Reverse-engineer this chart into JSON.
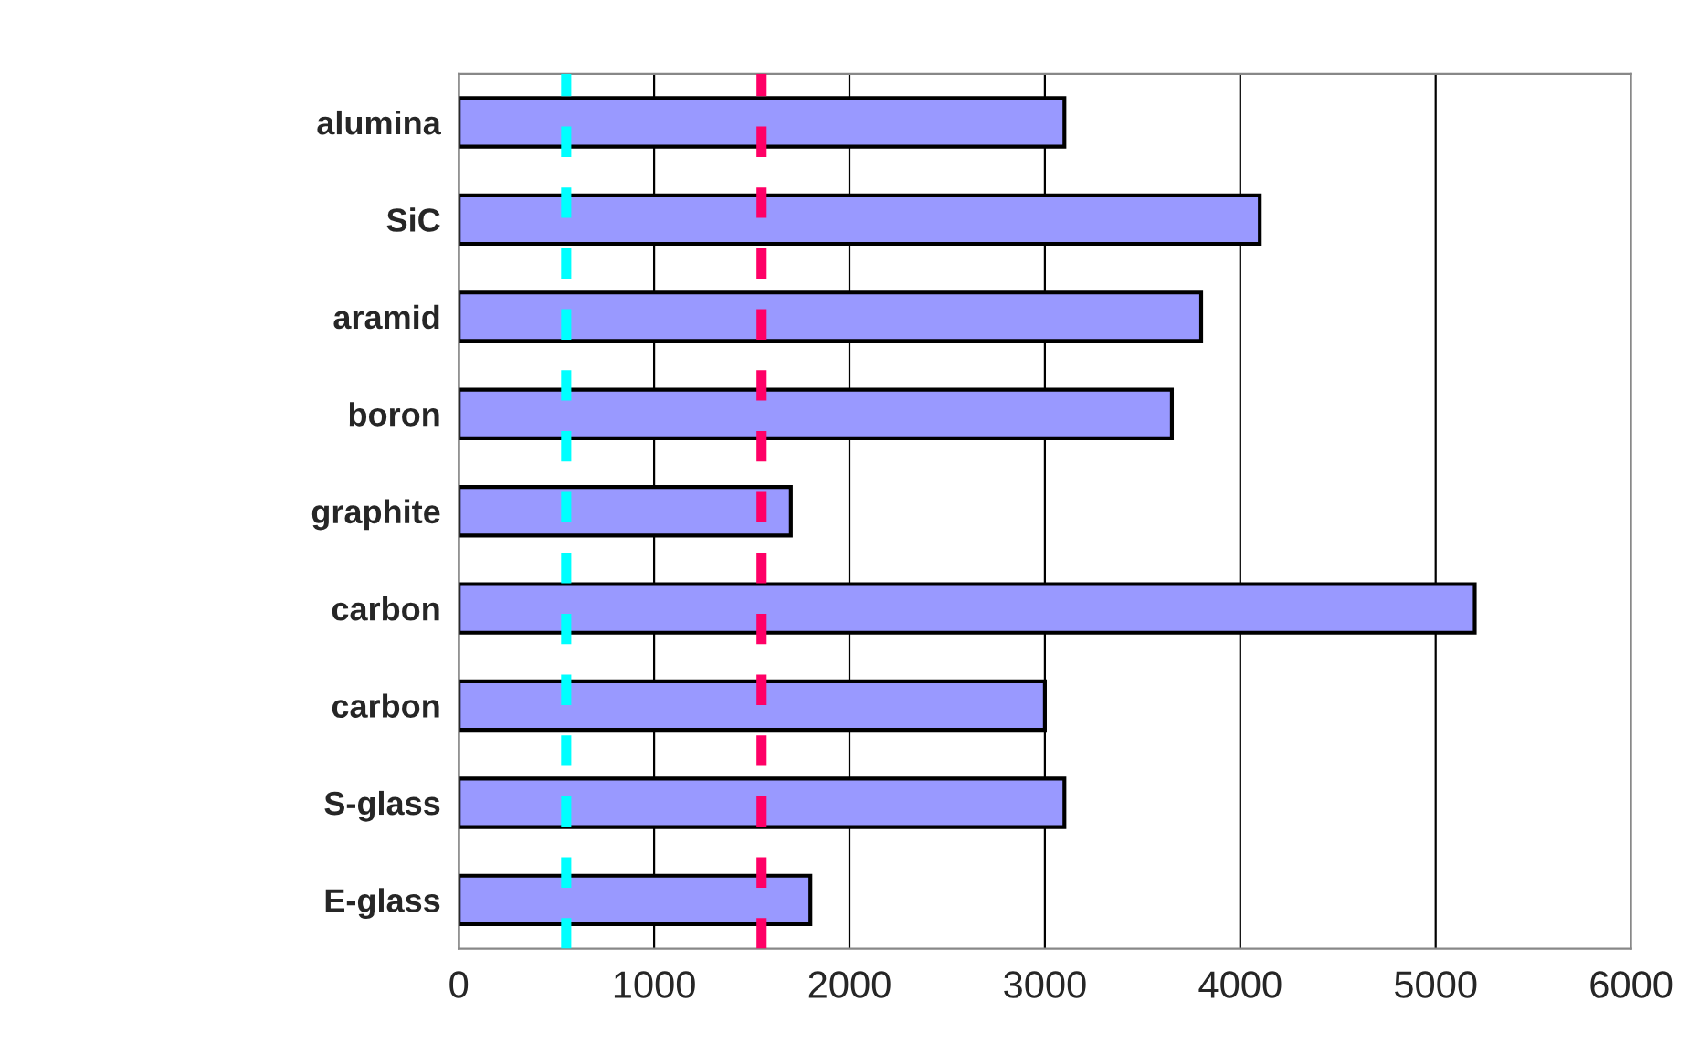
{
  "chart_data": {
    "type": "bar",
    "orientation": "horizontal",
    "categories": [
      "alumina",
      "SiC",
      "aramid",
      "boron",
      "graphite",
      "carbon",
      "carbon",
      "S-glass",
      "E-glass"
    ],
    "values": [
      3100,
      4100,
      3800,
      3650,
      1700,
      5200,
      3000,
      3100,
      1800
    ],
    "color": "#9999ff",
    "xlim": [
      0,
      6000
    ],
    "xticks": [
      0,
      1000,
      2000,
      3000,
      4000,
      5000,
      6000
    ],
    "grid": "x",
    "ref_lines": [
      {
        "axis": "x",
        "value": 550,
        "color": "#00ffff",
        "line_style": "dashed"
      },
      {
        "axis": "x",
        "value": 1550,
        "color": "#ff0066",
        "line_style": "dashed"
      }
    ]
  }
}
